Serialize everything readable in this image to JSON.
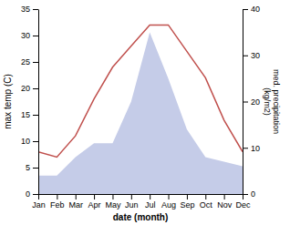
{
  "chart_data": {
    "type": "line",
    "categories": [
      "Jan",
      "Feb",
      "Mar",
      "Apr",
      "May",
      "Jun",
      "Jul",
      "Aug",
      "Sep",
      "Oct",
      "Nov",
      "Dec"
    ],
    "series": [
      {
        "type": "area",
        "color": "#c5cce8",
        "axis": "y2",
        "values": [
          4,
          4,
          8,
          11,
          11,
          20,
          35,
          25,
          14,
          8,
          7,
          6
        ]
      },
      {
        "type": "line",
        "color": "#c0504d",
        "values": [
          8,
          7,
          11,
          18,
          24,
          28,
          32,
          32,
          27,
          22,
          14,
          8
        ]
      }
    ],
    "xlabel": "date (month)",
    "ylabel": "max temp (C)",
    "y2label": "med. precipitation\n(kg/m2)",
    "ylim": [
      0,
      35
    ],
    "yticks": [
      0,
      5,
      10,
      15,
      20,
      25,
      30,
      35
    ],
    "y2lim": [
      0,
      40
    ],
    "y2ticks": [
      0,
      10,
      20,
      30,
      40
    ],
    "grid": false
  }
}
